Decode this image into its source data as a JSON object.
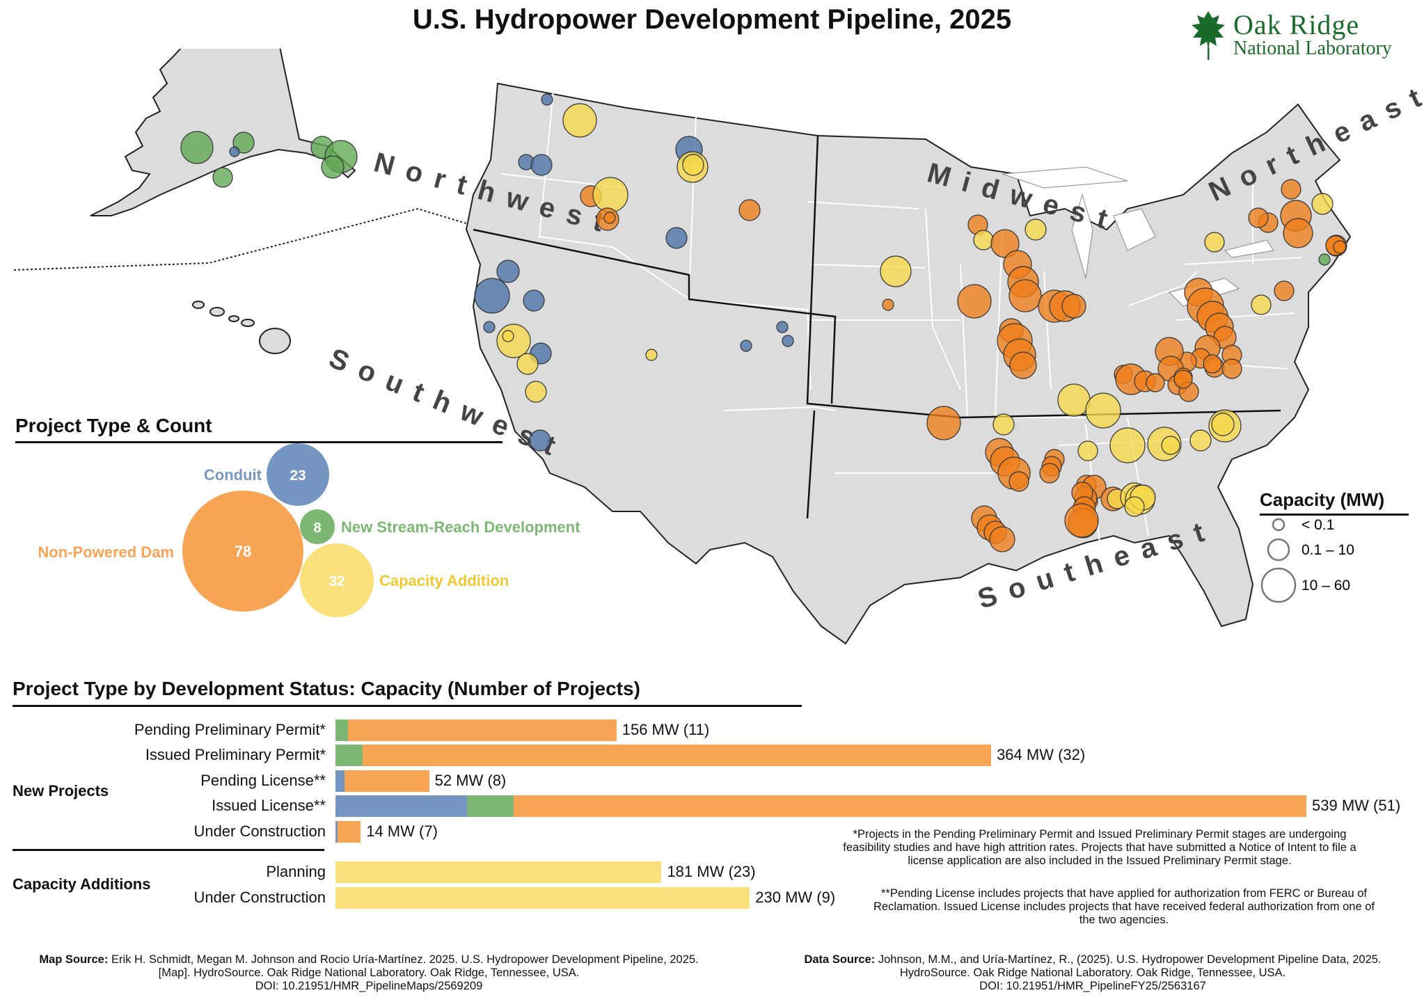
{
  "title": "U.S. Hydropower Development Pipeline, 2025",
  "logo": {
    "line1": "Oak Ridge",
    "line2": "National Laboratory"
  },
  "regions": [
    "Northwest",
    "Southwest",
    "Midwest",
    "Northeast",
    "Southeast"
  ],
  "colors": {
    "conduit": "#7596c2",
    "npd": "#f7a455",
    "nsd": "#7cb873",
    "capacity_addition": "#f9e07a",
    "map_conduit": "#4b73a8",
    "map_npd": "#f07f1a",
    "map_nsd": "#5fa852",
    "map_ca": "#f7d94a",
    "land": "#dcdcdc"
  },
  "project_type": {
    "heading": "Project Type & Count",
    "items": [
      {
        "key": "conduit",
        "label": "Conduit",
        "count": "23"
      },
      {
        "key": "nsd",
        "label": "New Stream-Reach Development",
        "count": "8"
      },
      {
        "key": "npd",
        "label": "Non-Powered Dam",
        "count": "78"
      },
      {
        "key": "capacity_addition",
        "label": "Capacity Addition",
        "count": "32"
      }
    ]
  },
  "capacity_legend": {
    "title": "Capacity (MW)",
    "items": [
      "< 0.1",
      "0.1 – 10",
      "10 – 60"
    ]
  },
  "status_chart": {
    "heading": "Project Type by Development Status: Capacity (Number of Projects)",
    "groups": [
      {
        "label": "New Projects"
      },
      {
        "label": "Capacity Additions"
      }
    ],
    "rows": [
      {
        "label": "Pending Preliminary Permit*",
        "value": "156 MW (11)",
        "mw": 156,
        "segments": [
          [
            "nsd",
            7
          ],
          [
            "npd",
            149
          ]
        ]
      },
      {
        "label": "Issued Preliminary Permit*",
        "value": "364 MW (32)",
        "mw": 364,
        "segments": [
          [
            "nsd",
            15
          ],
          [
            "npd",
            349
          ]
        ]
      },
      {
        "label": "Pending License**",
        "value": "52 MW (8)",
        "mw": 52,
        "segments": [
          [
            "conduit",
            5
          ],
          [
            "npd",
            47
          ]
        ]
      },
      {
        "label": "Issued License**",
        "value": "539 MW (51)",
        "mw": 539,
        "segments": [
          [
            "conduit",
            73
          ],
          [
            "nsd",
            26
          ],
          [
            "npd",
            440
          ]
        ]
      },
      {
        "label": "Under Construction",
        "value": "14 MW (7)",
        "mw": 14,
        "segments": [
          [
            "conduit",
            1
          ],
          [
            "npd",
            13
          ]
        ]
      },
      {
        "label": "Planning",
        "value": "181 MW (23)",
        "mw": 181,
        "segments": [
          [
            "capacity_addition",
            181
          ]
        ]
      },
      {
        "label": "Under Construction",
        "value": "230 MW (9)",
        "mw": 230,
        "segments": [
          [
            "capacity_addition",
            230
          ]
        ]
      }
    ]
  },
  "notes": {
    "note1": "*Projects in the Pending Preliminary Permit and Issued Preliminary Permit stages are undergoing feasibility studies and have high attrition rates. Projects that have submitted a Notice of Intent to file a license application are also included in the Issued Preliminary Permit stage.",
    "note2": "**Pending License includes projects that have applied for authorization from FERC or Bureau of Reclamation. Issued License includes projects that have received federal authorization from one of the two agencies."
  },
  "sources": {
    "map_label": "Map Source:",
    "map_text": "Erik H. Schmidt, Megan M. Johnson and Rocio Uría-Martínez. 2025. U.S. Hydropower Development Pipeline, 2025. [Map]. HydroSource. Oak Ridge National Laboratory. Oak Ridge, Tennessee, USA.",
    "map_doi": "DOI: 10.21951/HMR_PipelineMaps/2569209",
    "data_label": "Data Source:",
    "data_text": "Johnson, M.M., and Uría-Martínez, R., (2025). U.S. Hydropower Development Pipeline Data, 2025. HydroSource. Oak Ridge National Laboratory. Oak Ridge, Tennessee, USA.",
    "data_doi": "DOI: 10.21951/HMR_PipelineFY25/2563167"
  }
}
